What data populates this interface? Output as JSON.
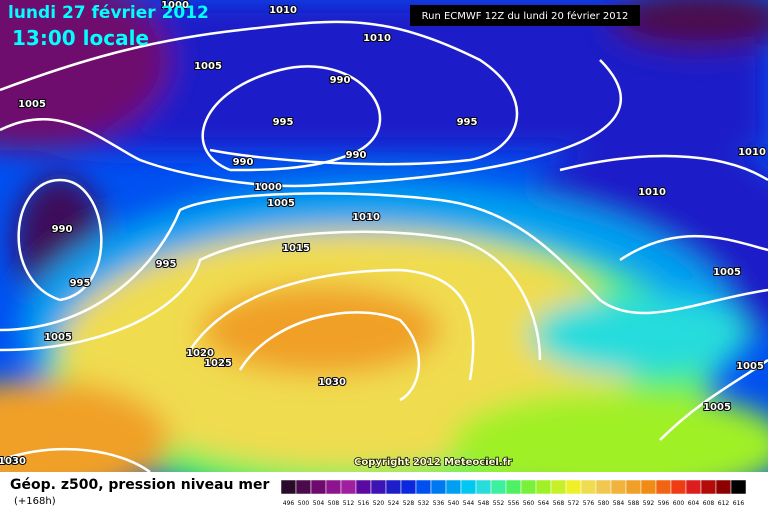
{
  "header": {
    "date": "lundi 27 février 2012",
    "time": "13:00 locale",
    "run": "Run ECMWF 12Z du lundi 20 février 2012"
  },
  "isobar_labels": [
    "1000",
    "1010",
    "1010",
    "1005",
    "990",
    "1005",
    "995",
    "995",
    "990",
    "990",
    "1010",
    "1000",
    "1005",
    "1010",
    "1010",
    "990",
    "1015",
    "995",
    "995",
    "1005",
    "1005",
    "1020",
    "1025",
    "1030",
    "1005",
    "1005",
    "1030"
  ],
  "copyright": "Copyright 2012 Meteociel.fr",
  "footer": {
    "title": "Géop. z500, pression niveau mer",
    "lead": "(+168h)"
  },
  "scale": {
    "values": [
      496,
      500,
      504,
      508,
      512,
      516,
      520,
      524,
      528,
      532,
      536,
      540,
      544,
      548,
      552,
      556,
      560,
      564,
      568,
      572,
      576,
      580,
      584,
      588,
      592,
      596,
      600,
      604,
      608,
      612,
      616
    ],
    "colors": [
      "#2a0a2a",
      "#4b0a4b",
      "#6e0a6e",
      "#8c148c",
      "#a01ea0",
      "#5a0aa0",
      "#3c14b4",
      "#1e1ec8",
      "#0a28dc",
      "#0050f0",
      "#0078f0",
      "#00a0f0",
      "#00c8f0",
      "#28dcdc",
      "#3cf0a0",
      "#50f064",
      "#78f03c",
      "#a0f028",
      "#c8f028",
      "#f0f028",
      "#f0dc50",
      "#f0c850",
      "#f0b43c",
      "#f0a028",
      "#f08c14",
      "#f06414",
      "#f03c14",
      "#dc1e1e",
      "#b40a0a",
      "#8c0000",
      "#000000"
    ]
  }
}
